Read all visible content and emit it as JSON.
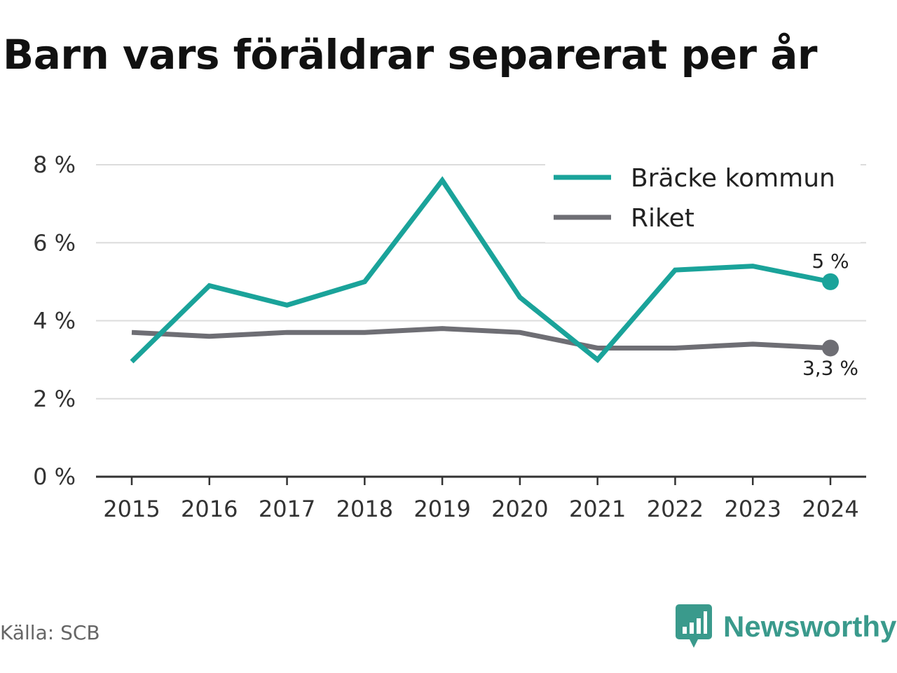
{
  "chart_data": {
    "type": "line",
    "title": "Barn vars föräldrar separerat per år",
    "x": [
      "2015",
      "2016",
      "2017",
      "2018",
      "2019",
      "2020",
      "2021",
      "2022",
      "2023",
      "2024"
    ],
    "series": [
      {
        "name": "Bräcke kommun",
        "color": "#1aa39a",
        "values": [
          2.95,
          4.9,
          4.4,
          5.0,
          7.6,
          4.6,
          3.0,
          5.3,
          5.4,
          5.0
        ],
        "end_label": "5 %"
      },
      {
        "name": "Riket",
        "color": "#6e6e74",
        "values": [
          3.7,
          3.6,
          3.7,
          3.7,
          3.8,
          3.7,
          3.3,
          3.3,
          3.4,
          3.3
        ],
        "end_label": "3,3 %"
      }
    ],
    "y_ticks": [
      0,
      2,
      4,
      6,
      8
    ],
    "y_tick_labels": [
      "0 %",
      "2 %",
      "4 %",
      "6 %",
      "8 %"
    ],
    "ylim": [
      0,
      8
    ],
    "grid": true,
    "legend_position": "top-right"
  },
  "footer": {
    "source": "Källa: SCB",
    "brand": "Newsworthy",
    "brand_color": "#3a9a8c",
    "brand_icon": "newsworthy-logo-icon"
  }
}
